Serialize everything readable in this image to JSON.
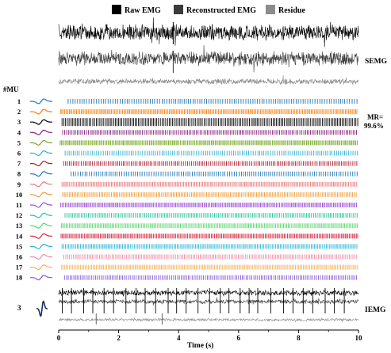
{
  "chart_data": {
    "type": "raster",
    "legend": [
      {
        "label": "Raw EMG",
        "color": "#000000"
      },
      {
        "label": "Reconstructed EMG",
        "color": "#3a3a3a"
      },
      {
        "label": "Residue",
        "color": "#8c8c8c"
      }
    ],
    "semg_label": "SEMG",
    "iemg_label": "IEMG",
    "mu_header": "#MU",
    "mr_label": "MR=",
    "mr_value": "99.6%",
    "xlabel": "Time (s)",
    "x_ticks": [
      "0",
      "2",
      "4",
      "6",
      "8",
      "10"
    ],
    "xlim": [
      0,
      10
    ],
    "iemg_mu_label": "3",
    "units": [
      {
        "id": "1",
        "color": "#1f77b4",
        "rate": 13.0,
        "phase": 0.3
      },
      {
        "id": "2",
        "color": "#ff7f0e",
        "rate": 20.0,
        "phase": 0.05
      },
      {
        "id": "3",
        "color": "#000000",
        "rate": 17.5,
        "phase": 0.1
      },
      {
        "id": "4",
        "color": "#8a1f7a",
        "rate": 17.0,
        "phase": 0.12
      },
      {
        "id": "5",
        "color": "#7aa82a",
        "rate": 22.0,
        "phase": 0.04
      },
      {
        "id": "6",
        "color": "#2ab0cf",
        "rate": 14.0,
        "phase": 0.2
      },
      {
        "id": "7",
        "color": "#b0192e",
        "rate": 15.5,
        "phase": 0.15
      },
      {
        "id": "8",
        "color": "#1f77b4",
        "rate": 13.5,
        "phase": 0.4
      },
      {
        "id": "9",
        "color": "#e8787a",
        "rate": 19.5,
        "phase": 0.1
      },
      {
        "id": "10",
        "color": "#f39c34",
        "rate": 18.0,
        "phase": 0.12
      },
      {
        "id": "11",
        "color": "#9b4de0",
        "rate": 21.0,
        "phase": 0.06
      },
      {
        "id": "12",
        "color": "#1ec7a0",
        "rate": 16.5,
        "phase": 0.2
      },
      {
        "id": "13",
        "color": "#55d86a",
        "rate": 19.0,
        "phase": 0.08
      },
      {
        "id": "14",
        "color": "#d9263a",
        "rate": 20.5,
        "phase": 0.07
      },
      {
        "id": "15",
        "color": "#26b5d9",
        "rate": 18.5,
        "phase": 0.1
      },
      {
        "id": "16",
        "color": "#f08aa4",
        "rate": 17.0,
        "phase": 0.16
      },
      {
        "id": "17",
        "color": "#f6b35a",
        "rate": 19.5,
        "phase": 0.09
      },
      {
        "id": "18",
        "color": "#8a5ae0",
        "rate": 16.0,
        "phase": 0.18
      }
    ]
  }
}
